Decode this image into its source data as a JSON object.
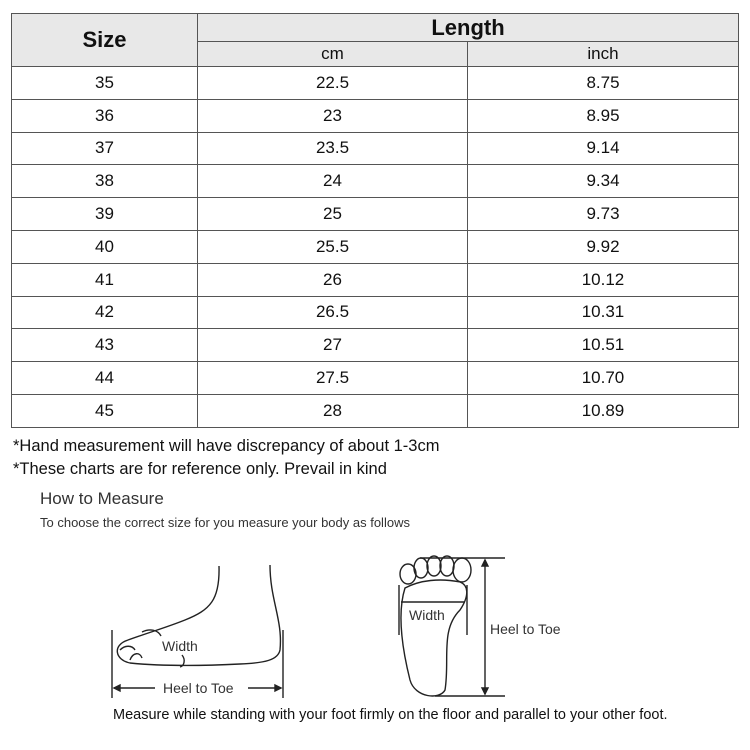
{
  "table": {
    "headers": {
      "size": "Size",
      "length": "Length",
      "cm": "cm",
      "inch": "inch"
    },
    "rows": [
      {
        "size": "35",
        "cm": "22.5",
        "inch": "8.75"
      },
      {
        "size": "36",
        "cm": "23",
        "inch": "8.95"
      },
      {
        "size": "37",
        "cm": "23.5",
        "inch": "9.14"
      },
      {
        "size": "38",
        "cm": "24",
        "inch": "9.34"
      },
      {
        "size": "39",
        "cm": "25",
        "inch": "9.73"
      },
      {
        "size": "40",
        "cm": "25.5",
        "inch": "9.92"
      },
      {
        "size": "41",
        "cm": "26",
        "inch": "10.12"
      },
      {
        "size": "42",
        "cm": "26.5",
        "inch": "10.31"
      },
      {
        "size": "43",
        "cm": "27",
        "inch": "10.51"
      },
      {
        "size": "44",
        "cm": "27.5",
        "inch": "10.70"
      },
      {
        "size": "45",
        "cm": "28",
        "inch": "10.89"
      }
    ]
  },
  "notes": [
    "*Hand measurement will have discrepancy of about 1-3cm",
    "*These charts are for reference only. Prevail in kind"
  ],
  "how_to": {
    "title": "How to Measure",
    "subtitle": "To choose the correct size for you measure your body as follows"
  },
  "diagram": {
    "width_label": "Width",
    "heel_to_toe_label": "Heel to Toe"
  },
  "caption": "Measure while standing with your foot firmly on the floor and parallel to your other foot."
}
